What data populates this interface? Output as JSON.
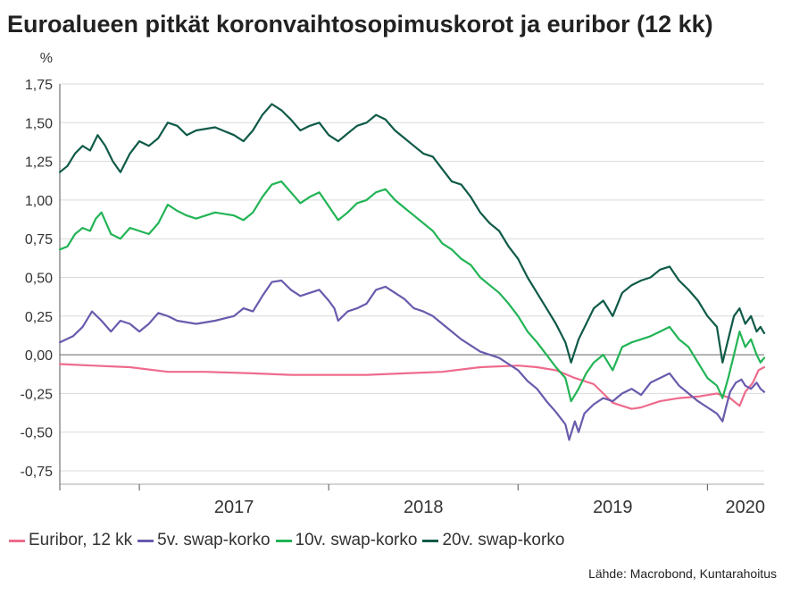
{
  "title": "Euroalueen pitkät koronvaihtosopimuskorot ja euribor (12 kk)",
  "source": "Lähde: Macrobond, Kuntarahoitus",
  "colors": {
    "euribor": "#ee6b8c",
    "swap5": "#6a5aad",
    "swap10": "#22b455",
    "swap20": "#0f5a48",
    "grid": "#d9d9d9",
    "zero": "#999999"
  },
  "chart_data": {
    "type": "line",
    "title": "Euroalueen pitkät koronvaihtosopimuskorot ja euribor (12 kk)",
    "ylabel": "%",
    "xlabel": "",
    "ylim": [
      -0.75,
      1.75
    ],
    "yticks": [
      1.75,
      1.5,
      1.25,
      1.0,
      0.75,
      0.5,
      0.25,
      0.0,
      -0.25,
      -0.5,
      -0.75
    ],
    "ytick_labels": [
      "1,75",
      "1,50",
      "1,25",
      "1,00",
      "0,75",
      "0,50",
      "0,25",
      "0,00",
      "-0,25",
      "-0,50",
      "-0,75"
    ],
    "xlim": [
      2016.58,
      2020.3
    ],
    "xtick_positions": [
      2016.58,
      2017.0,
      2018.0,
      2019.0,
      2020.0
    ],
    "xlabels": [
      {
        "label": "2017",
        "x": 2017.5
      },
      {
        "label": "2018",
        "x": 2018.5
      },
      {
        "label": "2019",
        "x": 2019.5
      },
      {
        "label": "2020",
        "x": 2020.2
      }
    ],
    "grid": true,
    "legend_position": "bottom",
    "series": [
      {
        "name": "Euribor, 12 kk",
        "color": "#ee6b8c",
        "points": [
          [
            2016.58,
            -0.06
          ],
          [
            2016.75,
            -0.07
          ],
          [
            2016.95,
            -0.08
          ],
          [
            2017.15,
            -0.11
          ],
          [
            2017.35,
            -0.11
          ],
          [
            2017.6,
            -0.12
          ],
          [
            2017.8,
            -0.13
          ],
          [
            2018.0,
            -0.13
          ],
          [
            2018.2,
            -0.13
          ],
          [
            2018.4,
            -0.12
          ],
          [
            2018.6,
            -0.11
          ],
          [
            2018.8,
            -0.08
          ],
          [
            2019.0,
            -0.07
          ],
          [
            2019.1,
            -0.08
          ],
          [
            2019.2,
            -0.1
          ],
          [
            2019.3,
            -0.15
          ],
          [
            2019.4,
            -0.19
          ],
          [
            2019.45,
            -0.25
          ],
          [
            2019.5,
            -0.31
          ],
          [
            2019.55,
            -0.33
          ],
          [
            2019.6,
            -0.35
          ],
          [
            2019.65,
            -0.34
          ],
          [
            2019.75,
            -0.3
          ],
          [
            2019.85,
            -0.28
          ],
          [
            2019.95,
            -0.27
          ],
          [
            2020.05,
            -0.25
          ],
          [
            2020.12,
            -0.28
          ],
          [
            2020.17,
            -0.33
          ],
          [
            2020.2,
            -0.24
          ],
          [
            2020.24,
            -0.18
          ],
          [
            2020.27,
            -0.1
          ],
          [
            2020.3,
            -0.08
          ]
        ]
      },
      {
        "name": "5v. swap-korko",
        "color": "#6a5aad",
        "points": [
          [
            2016.58,
            0.08
          ],
          [
            2016.65,
            0.12
          ],
          [
            2016.7,
            0.18
          ],
          [
            2016.75,
            0.28
          ],
          [
            2016.8,
            0.22
          ],
          [
            2016.85,
            0.15
          ],
          [
            2016.9,
            0.22
          ],
          [
            2016.95,
            0.2
          ],
          [
            2017.0,
            0.15
          ],
          [
            2017.05,
            0.2
          ],
          [
            2017.1,
            0.27
          ],
          [
            2017.15,
            0.25
          ],
          [
            2017.2,
            0.22
          ],
          [
            2017.3,
            0.2
          ],
          [
            2017.4,
            0.22
          ],
          [
            2017.5,
            0.25
          ],
          [
            2017.55,
            0.3
          ],
          [
            2017.6,
            0.28
          ],
          [
            2017.65,
            0.38
          ],
          [
            2017.7,
            0.47
          ],
          [
            2017.75,
            0.48
          ],
          [
            2017.8,
            0.42
          ],
          [
            2017.85,
            0.38
          ],
          [
            2017.9,
            0.4
          ],
          [
            2017.95,
            0.42
          ],
          [
            2018.0,
            0.35
          ],
          [
            2018.03,
            0.3
          ],
          [
            2018.05,
            0.22
          ],
          [
            2018.1,
            0.28
          ],
          [
            2018.15,
            0.3
          ],
          [
            2018.2,
            0.33
          ],
          [
            2018.25,
            0.42
          ],
          [
            2018.3,
            0.44
          ],
          [
            2018.35,
            0.4
          ],
          [
            2018.4,
            0.36
          ],
          [
            2018.45,
            0.3
          ],
          [
            2018.5,
            0.28
          ],
          [
            2018.55,
            0.25
          ],
          [
            2018.6,
            0.2
          ],
          [
            2018.65,
            0.15
          ],
          [
            2018.7,
            0.1
          ],
          [
            2018.75,
            0.06
          ],
          [
            2018.8,
            0.02
          ],
          [
            2018.85,
            0.0
          ],
          [
            2018.9,
            -0.02
          ],
          [
            2018.95,
            -0.06
          ],
          [
            2019.0,
            -0.1
          ],
          [
            2019.05,
            -0.17
          ],
          [
            2019.1,
            -0.22
          ],
          [
            2019.15,
            -0.3
          ],
          [
            2019.2,
            -0.37
          ],
          [
            2019.25,
            -0.45
          ],
          [
            2019.27,
            -0.55
          ],
          [
            2019.3,
            -0.43
          ],
          [
            2019.32,
            -0.5
          ],
          [
            2019.35,
            -0.38
          ],
          [
            2019.4,
            -0.32
          ],
          [
            2019.45,
            -0.28
          ],
          [
            2019.5,
            -0.3
          ],
          [
            2019.55,
            -0.25
          ],
          [
            2019.6,
            -0.22
          ],
          [
            2019.65,
            -0.26
          ],
          [
            2019.7,
            -0.18
          ],
          [
            2019.75,
            -0.15
          ],
          [
            2019.8,
            -0.12
          ],
          [
            2019.85,
            -0.2
          ],
          [
            2019.9,
            -0.25
          ],
          [
            2019.95,
            -0.3
          ],
          [
            2020.0,
            -0.34
          ],
          [
            2020.05,
            -0.38
          ],
          [
            2020.08,
            -0.43
          ],
          [
            2020.1,
            -0.33
          ],
          [
            2020.12,
            -0.24
          ],
          [
            2020.15,
            -0.18
          ],
          [
            2020.18,
            -0.16
          ],
          [
            2020.2,
            -0.2
          ],
          [
            2020.23,
            -0.22
          ],
          [
            2020.26,
            -0.18
          ],
          [
            2020.28,
            -0.22
          ],
          [
            2020.3,
            -0.24
          ]
        ]
      },
      {
        "name": "10v. swap-korko",
        "color": "#22b455",
        "points": [
          [
            2016.58,
            0.68
          ],
          [
            2016.62,
            0.7
          ],
          [
            2016.66,
            0.78
          ],
          [
            2016.7,
            0.82
          ],
          [
            2016.74,
            0.8
          ],
          [
            2016.77,
            0.88
          ],
          [
            2016.8,
            0.92
          ],
          [
            2016.85,
            0.78
          ],
          [
            2016.9,
            0.75
          ],
          [
            2016.95,
            0.82
          ],
          [
            2017.0,
            0.8
          ],
          [
            2017.05,
            0.78
          ],
          [
            2017.1,
            0.85
          ],
          [
            2017.15,
            0.97
          ],
          [
            2017.2,
            0.93
          ],
          [
            2017.25,
            0.9
          ],
          [
            2017.3,
            0.88
          ],
          [
            2017.4,
            0.92
          ],
          [
            2017.5,
            0.9
          ],
          [
            2017.55,
            0.87
          ],
          [
            2017.6,
            0.92
          ],
          [
            2017.65,
            1.02
          ],
          [
            2017.7,
            1.1
          ],
          [
            2017.75,
            1.12
          ],
          [
            2017.8,
            1.05
          ],
          [
            2017.85,
            0.98
          ],
          [
            2017.9,
            1.02
          ],
          [
            2017.95,
            1.05
          ],
          [
            2018.0,
            0.96
          ],
          [
            2018.05,
            0.87
          ],
          [
            2018.1,
            0.92
          ],
          [
            2018.15,
            0.98
          ],
          [
            2018.2,
            1.0
          ],
          [
            2018.25,
            1.05
          ],
          [
            2018.3,
            1.07
          ],
          [
            2018.35,
            1.0
          ],
          [
            2018.4,
            0.95
          ],
          [
            2018.45,
            0.9
          ],
          [
            2018.5,
            0.85
          ],
          [
            2018.55,
            0.8
          ],
          [
            2018.6,
            0.72
          ],
          [
            2018.65,
            0.68
          ],
          [
            2018.7,
            0.62
          ],
          [
            2018.75,
            0.58
          ],
          [
            2018.8,
            0.5
          ],
          [
            2018.85,
            0.45
          ],
          [
            2018.9,
            0.4
          ],
          [
            2018.95,
            0.33
          ],
          [
            2019.0,
            0.25
          ],
          [
            2019.05,
            0.15
          ],
          [
            2019.1,
            0.08
          ],
          [
            2019.15,
            0.0
          ],
          [
            2019.2,
            -0.08
          ],
          [
            2019.25,
            -0.15
          ],
          [
            2019.28,
            -0.3
          ],
          [
            2019.32,
            -0.22
          ],
          [
            2019.36,
            -0.12
          ],
          [
            2019.4,
            -0.05
          ],
          [
            2019.45,
            0.0
          ],
          [
            2019.5,
            -0.1
          ],
          [
            2019.55,
            0.05
          ],
          [
            2019.6,
            0.08
          ],
          [
            2019.65,
            0.1
          ],
          [
            2019.7,
            0.12
          ],
          [
            2019.75,
            0.15
          ],
          [
            2019.8,
            0.18
          ],
          [
            2019.85,
            0.1
          ],
          [
            2019.9,
            0.05
          ],
          [
            2019.95,
            -0.05
          ],
          [
            2020.0,
            -0.15
          ],
          [
            2020.05,
            -0.2
          ],
          [
            2020.08,
            -0.28
          ],
          [
            2020.11,
            -0.15
          ],
          [
            2020.14,
            0.0
          ],
          [
            2020.17,
            0.15
          ],
          [
            2020.2,
            0.05
          ],
          [
            2020.23,
            0.1
          ],
          [
            2020.26,
            0.0
          ],
          [
            2020.28,
            -0.05
          ],
          [
            2020.3,
            -0.02
          ]
        ]
      },
      {
        "name": "20v. swap-korko",
        "color": "#0f5a48",
        "points": [
          [
            2016.58,
            1.18
          ],
          [
            2016.62,
            1.22
          ],
          [
            2016.66,
            1.3
          ],
          [
            2016.7,
            1.35
          ],
          [
            2016.74,
            1.32
          ],
          [
            2016.78,
            1.42
          ],
          [
            2016.82,
            1.35
          ],
          [
            2016.86,
            1.25
          ],
          [
            2016.9,
            1.18
          ],
          [
            2016.95,
            1.3
          ],
          [
            2017.0,
            1.38
          ],
          [
            2017.05,
            1.35
          ],
          [
            2017.1,
            1.4
          ],
          [
            2017.15,
            1.5
          ],
          [
            2017.2,
            1.48
          ],
          [
            2017.25,
            1.42
          ],
          [
            2017.3,
            1.45
          ],
          [
            2017.4,
            1.47
          ],
          [
            2017.5,
            1.42
          ],
          [
            2017.55,
            1.38
          ],
          [
            2017.6,
            1.45
          ],
          [
            2017.65,
            1.55
          ],
          [
            2017.7,
            1.62
          ],
          [
            2017.75,
            1.58
          ],
          [
            2017.8,
            1.52
          ],
          [
            2017.85,
            1.45
          ],
          [
            2017.9,
            1.48
          ],
          [
            2017.95,
            1.5
          ],
          [
            2018.0,
            1.42
          ],
          [
            2018.05,
            1.38
          ],
          [
            2018.1,
            1.43
          ],
          [
            2018.15,
            1.48
          ],
          [
            2018.2,
            1.5
          ],
          [
            2018.25,
            1.55
          ],
          [
            2018.3,
            1.52
          ],
          [
            2018.35,
            1.45
          ],
          [
            2018.4,
            1.4
          ],
          [
            2018.45,
            1.35
          ],
          [
            2018.5,
            1.3
          ],
          [
            2018.55,
            1.28
          ],
          [
            2018.6,
            1.2
          ],
          [
            2018.65,
            1.12
          ],
          [
            2018.7,
            1.1
          ],
          [
            2018.75,
            1.02
          ],
          [
            2018.8,
            0.92
          ],
          [
            2018.85,
            0.85
          ],
          [
            2018.9,
            0.8
          ],
          [
            2018.95,
            0.7
          ],
          [
            2019.0,
            0.62
          ],
          [
            2019.05,
            0.5
          ],
          [
            2019.1,
            0.4
          ],
          [
            2019.15,
            0.3
          ],
          [
            2019.2,
            0.2
          ],
          [
            2019.25,
            0.08
          ],
          [
            2019.28,
            -0.05
          ],
          [
            2019.32,
            0.1
          ],
          [
            2019.36,
            0.2
          ],
          [
            2019.4,
            0.3
          ],
          [
            2019.45,
            0.35
          ],
          [
            2019.5,
            0.25
          ],
          [
            2019.55,
            0.4
          ],
          [
            2019.6,
            0.45
          ],
          [
            2019.65,
            0.48
          ],
          [
            2019.7,
            0.5
          ],
          [
            2019.75,
            0.55
          ],
          [
            2019.8,
            0.57
          ],
          [
            2019.85,
            0.48
          ],
          [
            2019.9,
            0.42
          ],
          [
            2019.95,
            0.35
          ],
          [
            2020.0,
            0.25
          ],
          [
            2020.05,
            0.18
          ],
          [
            2020.08,
            -0.05
          ],
          [
            2020.11,
            0.1
          ],
          [
            2020.14,
            0.25
          ],
          [
            2020.17,
            0.3
          ],
          [
            2020.2,
            0.2
          ],
          [
            2020.23,
            0.25
          ],
          [
            2020.26,
            0.15
          ],
          [
            2020.28,
            0.18
          ],
          [
            2020.3,
            0.14
          ]
        ]
      }
    ]
  }
}
